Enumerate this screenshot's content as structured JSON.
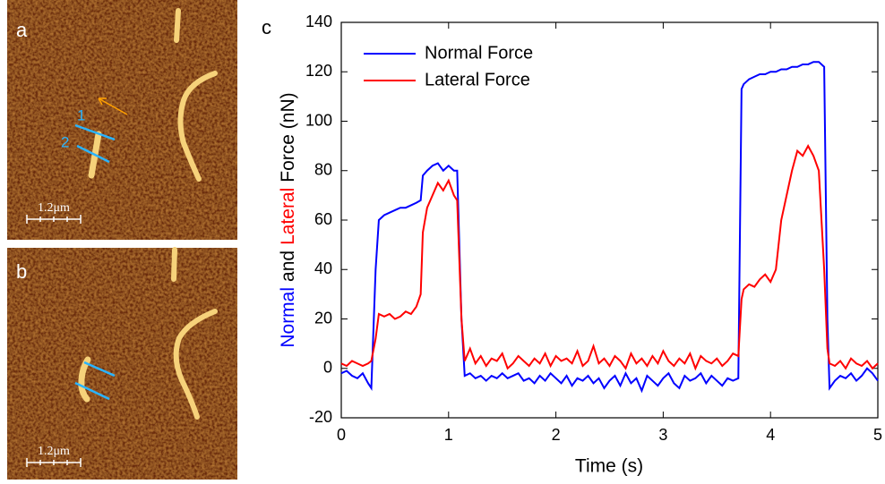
{
  "panels": [
    {
      "label": "a",
      "scale_bar": "1.2μm",
      "markers": [
        "1",
        "2"
      ]
    },
    {
      "label": "b",
      "scale_bar": "1.2μm"
    }
  ],
  "chart_data": {
    "type": "line",
    "panel_label": "c",
    "xlabel": "Time (s)",
    "ylabel_parts": [
      {
        "text": "Normal",
        "color": "#0000ff"
      },
      {
        "text": "and",
        "color": "#000000"
      },
      {
        "text": "Lateral",
        "color": "#ff0000"
      },
      {
        "text": "Force (nN)",
        "color": "#000000"
      }
    ],
    "xlim": [
      0,
      5
    ],
    "ylim": [
      -20,
      140
    ],
    "xticks": [
      0,
      1,
      2,
      3,
      4,
      5
    ],
    "yticks": [
      -20,
      0,
      20,
      40,
      60,
      80,
      100,
      120,
      140
    ],
    "legend": "upper left",
    "x": [
      0,
      0.05,
      0.1,
      0.15,
      0.2,
      0.25,
      0.28,
      0.32,
      0.35,
      0.4,
      0.45,
      0.5,
      0.55,
      0.6,
      0.65,
      0.7,
      0.74,
      0.76,
      0.8,
      0.85,
      0.9,
      0.95,
      1.0,
      1.05,
      1.08,
      1.12,
      1.15,
      1.2,
      1.25,
      1.3,
      1.35,
      1.4,
      1.45,
      1.5,
      1.55,
      1.6,
      1.65,
      1.7,
      1.75,
      1.8,
      1.85,
      1.9,
      1.95,
      2.0,
      2.05,
      2.1,
      2.15,
      2.2,
      2.25,
      2.3,
      2.35,
      2.4,
      2.45,
      2.5,
      2.55,
      2.6,
      2.65,
      2.7,
      2.75,
      2.8,
      2.85,
      2.9,
      2.95,
      3.0,
      3.05,
      3.1,
      3.15,
      3.2,
      3.25,
      3.3,
      3.35,
      3.4,
      3.45,
      3.5,
      3.55,
      3.6,
      3.65,
      3.7,
      3.73,
      3.75,
      3.8,
      3.85,
      3.9,
      3.95,
      4.0,
      4.05,
      4.1,
      4.15,
      4.2,
      4.25,
      4.3,
      4.35,
      4.4,
      4.45,
      4.5,
      4.53,
      4.55,
      4.6,
      4.65,
      4.7,
      4.75,
      4.8,
      4.85,
      4.9,
      4.95,
      5.0
    ],
    "series": [
      {
        "name": "Normal Force",
        "color": "#0000ff",
        "values": [
          -2,
          -1,
          -3,
          -4,
          -2,
          -6,
          -8,
          40,
          60,
          62,
          63,
          64,
          65,
          65,
          66,
          67,
          68,
          78,
          80,
          82,
          83,
          80,
          82,
          80,
          80,
          20,
          -3,
          -2,
          -4,
          -3,
          -5,
          -3,
          -4,
          -2,
          -4,
          -3,
          -2,
          -5,
          -4,
          -6,
          -3,
          -5,
          -2,
          -4,
          -6,
          -3,
          -7,
          -4,
          -5,
          -3,
          -6,
          -4,
          -8,
          -5,
          -3,
          -7,
          -2,
          -6,
          -4,
          -9,
          -3,
          -5,
          -7,
          -4,
          -2,
          -6,
          -8,
          -3,
          -5,
          -4,
          -2,
          -6,
          -3,
          -5,
          -7,
          -4,
          -5,
          -4,
          113,
          115,
          117,
          118,
          119,
          119,
          120,
          120,
          121,
          121,
          122,
          122,
          123,
          123,
          124,
          124,
          122,
          20,
          -8,
          -5,
          -3,
          -4,
          -2,
          -5,
          -3,
          0,
          -2,
          -5
        ]
      },
      {
        "name": "Lateral Force",
        "color": "#ff0000",
        "values": [
          2,
          1,
          3,
          2,
          1,
          2,
          3,
          12,
          22,
          21,
          22,
          20,
          21,
          23,
          22,
          25,
          30,
          55,
          65,
          70,
          75,
          72,
          76,
          70,
          68,
          20,
          3,
          8,
          2,
          5,
          1,
          4,
          3,
          6,
          0,
          2,
          5,
          3,
          1,
          4,
          2,
          6,
          1,
          5,
          3,
          4,
          2,
          7,
          1,
          3,
          9,
          2,
          4,
          1,
          5,
          3,
          0,
          6,
          2,
          4,
          1,
          5,
          2,
          7,
          3,
          1,
          4,
          2,
          6,
          0,
          5,
          3,
          2,
          4,
          1,
          3,
          6,
          5,
          28,
          32,
          34,
          33,
          36,
          38,
          35,
          40,
          60,
          70,
          80,
          88,
          86,
          90,
          86,
          80,
          40,
          8,
          2,
          1,
          3,
          0,
          4,
          2,
          1,
          3,
          0,
          2
        ]
      }
    ]
  }
}
